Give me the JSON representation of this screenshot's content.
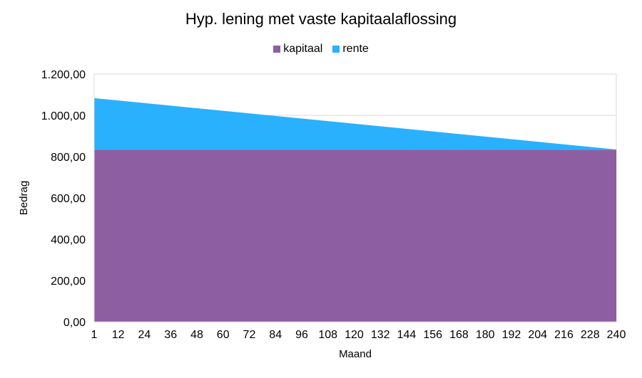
{
  "chart_data": {
    "type": "area",
    "stacked": true,
    "title": "Hyp. lening met vaste kapitaalaflossing",
    "xlabel": "Maand",
    "ylabel": "Bedrag",
    "ylim": [
      0,
      1200
    ],
    "xlim": [
      1,
      240
    ],
    "grid": true,
    "legend": "top",
    "yticks": [
      "0,00",
      "200,00",
      "400,00",
      "600,00",
      "800,00",
      "1.000,00",
      "1.200,00"
    ],
    "ytick_values": [
      0,
      200,
      400,
      600,
      800,
      1000,
      1200
    ],
    "x": [
      1,
      12,
      24,
      36,
      48,
      60,
      72,
      84,
      96,
      108,
      120,
      132,
      144,
      156,
      168,
      180,
      192,
      204,
      216,
      228,
      240
    ],
    "xticks": [
      "1",
      "12",
      "24",
      "36",
      "48",
      "60",
      "72",
      "84",
      "96",
      "108",
      "120",
      "132",
      "144",
      "156",
      "168",
      "180",
      "192",
      "204",
      "216",
      "228",
      "240"
    ],
    "series": [
      {
        "name": "kapitaal",
        "color": "#8E5EA2",
        "values": [
          833.33,
          833.33,
          833.33,
          833.33,
          833.33,
          833.33,
          833.33,
          833.33,
          833.33,
          833.33,
          833.33,
          833.33,
          833.33,
          833.33,
          833.33,
          833.33,
          833.33,
          833.33,
          833.33,
          833.33,
          833.33
        ]
      },
      {
        "name": "rente",
        "color": "#29B1FD",
        "values": [
          250.0,
          238.54,
          226.04,
          213.54,
          201.04,
          188.54,
          176.04,
          163.54,
          151.04,
          138.54,
          126.04,
          113.54,
          101.04,
          88.54,
          76.04,
          63.54,
          51.04,
          38.54,
          26.04,
          13.54,
          1.04
        ]
      }
    ]
  }
}
